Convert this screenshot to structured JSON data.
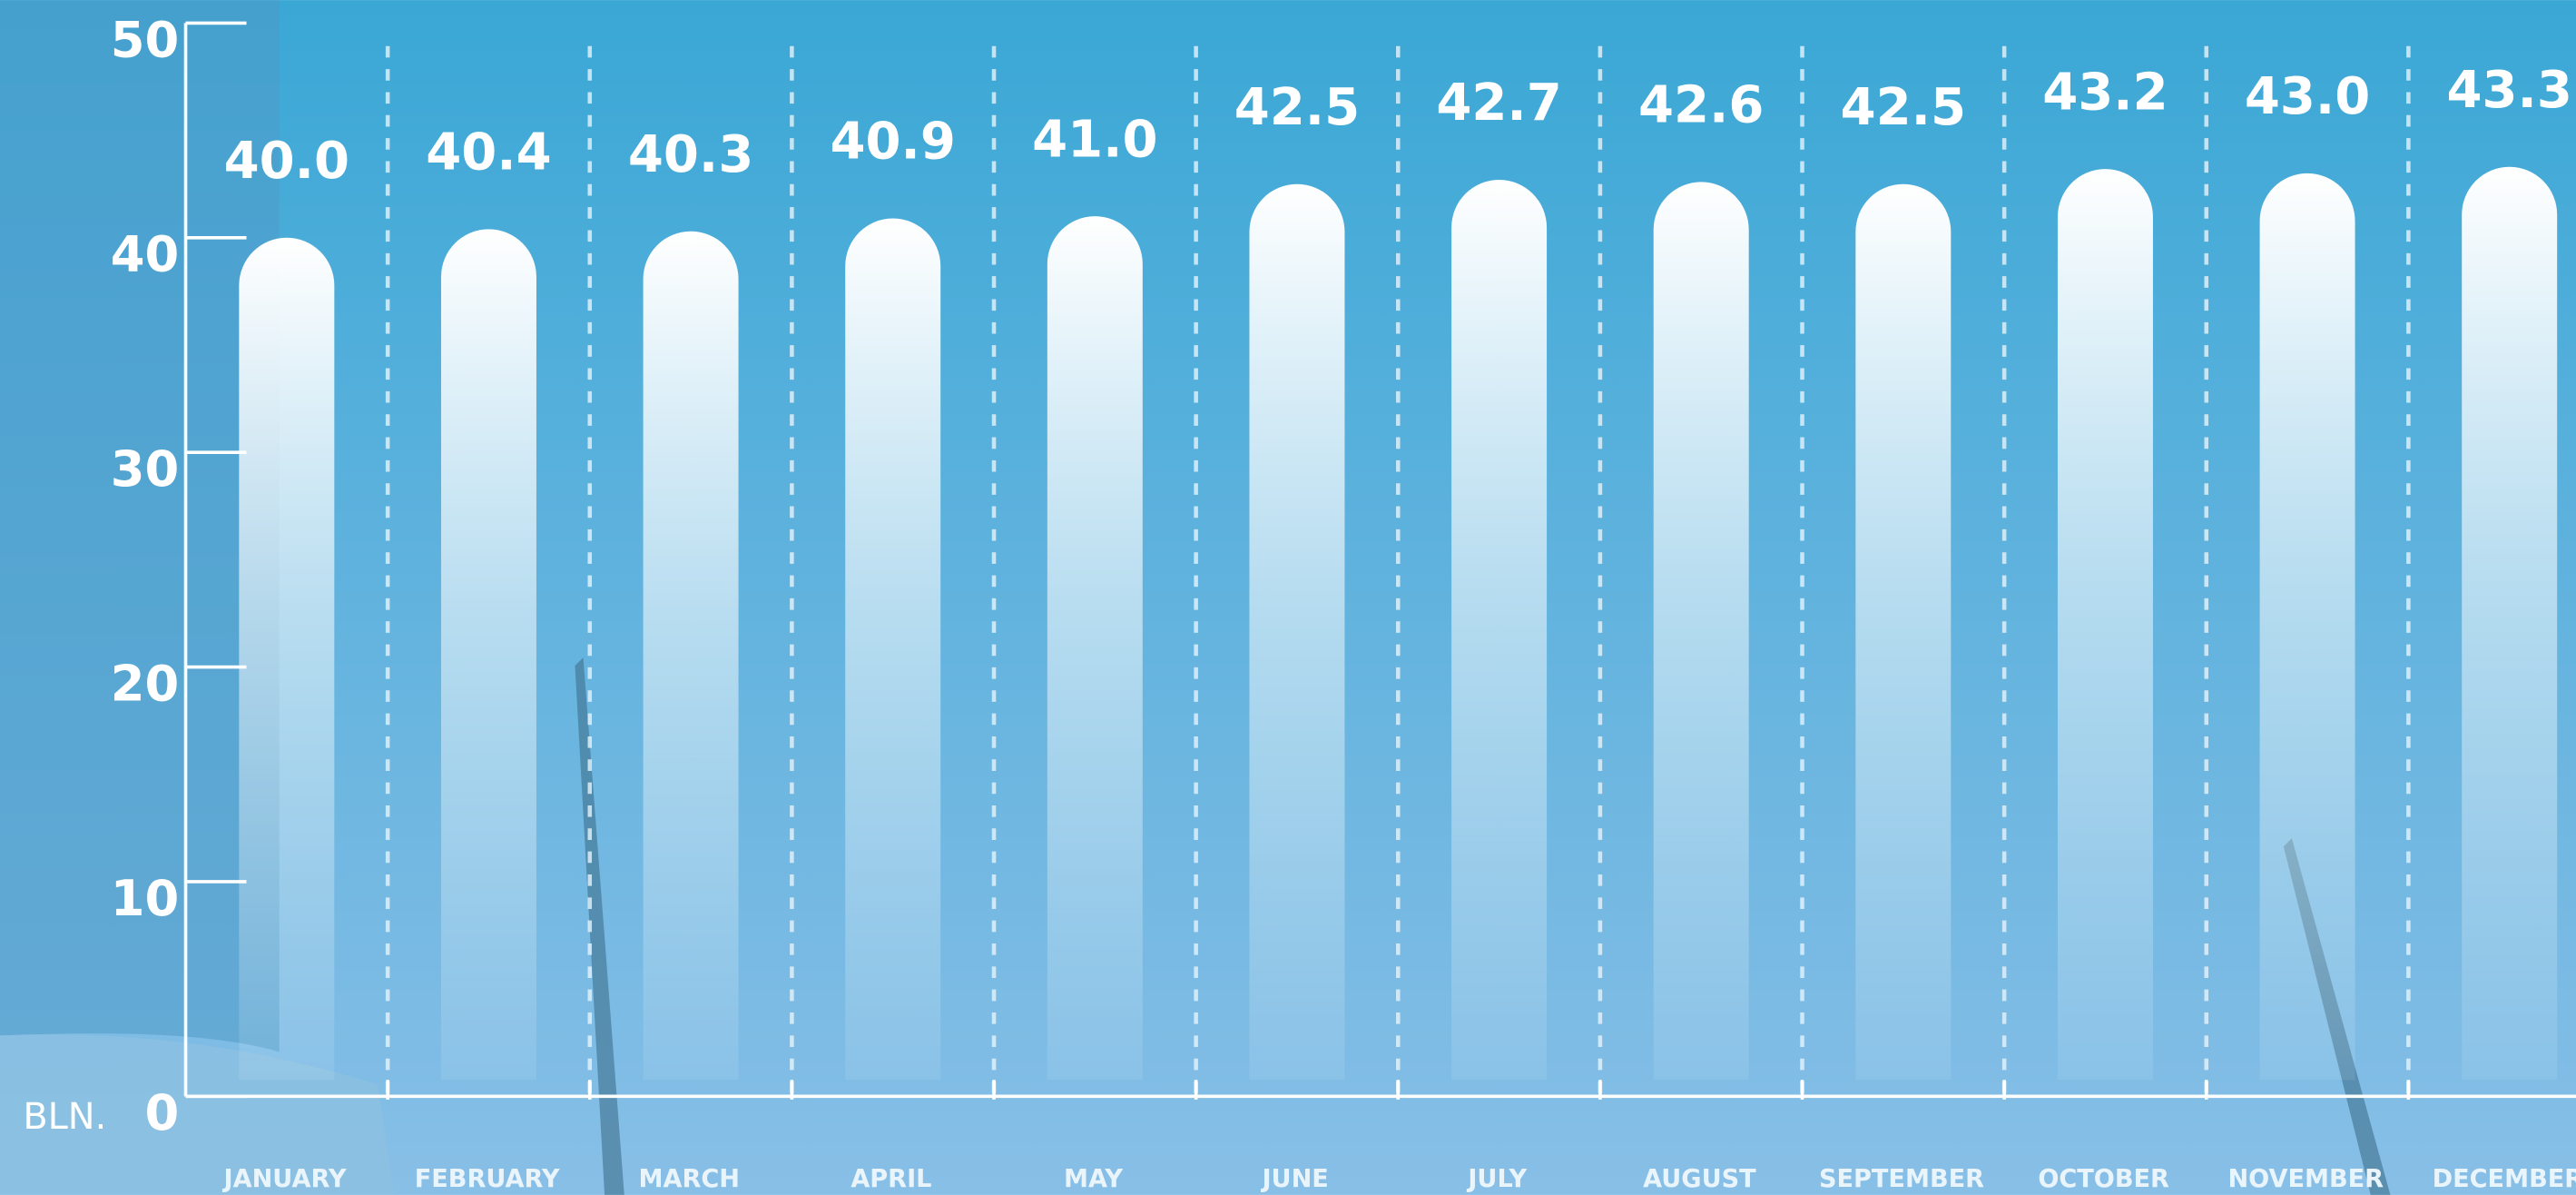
{
  "chart_data": {
    "type": "bar",
    "y_label": "BLN.",
    "categories": [
      "JANUARY",
      "FEBRUARY",
      "MARCH",
      "APRIL",
      "MAY",
      "JUNE",
      "JULY",
      "AUGUST",
      "SEPTEMBER",
      "OCTOBER",
      "NOVEMBER",
      "DECEMBER"
    ],
    "values": [
      40.0,
      40.4,
      40.3,
      40.9,
      41.0,
      42.5,
      42.7,
      42.6,
      42.5,
      43.2,
      43.0,
      43.3
    ],
    "value_labels": [
      "40.0",
      "40.4",
      "40.3",
      "40.9",
      "41.0",
      "42.5",
      "42.7",
      "42.6",
      "42.5",
      "43.2",
      "43.0",
      "43.3"
    ],
    "color": "#ffffff",
    "ylim": [
      0,
      50
    ],
    "yticks": [
      0,
      10,
      20,
      30,
      40,
      50
    ]
  }
}
